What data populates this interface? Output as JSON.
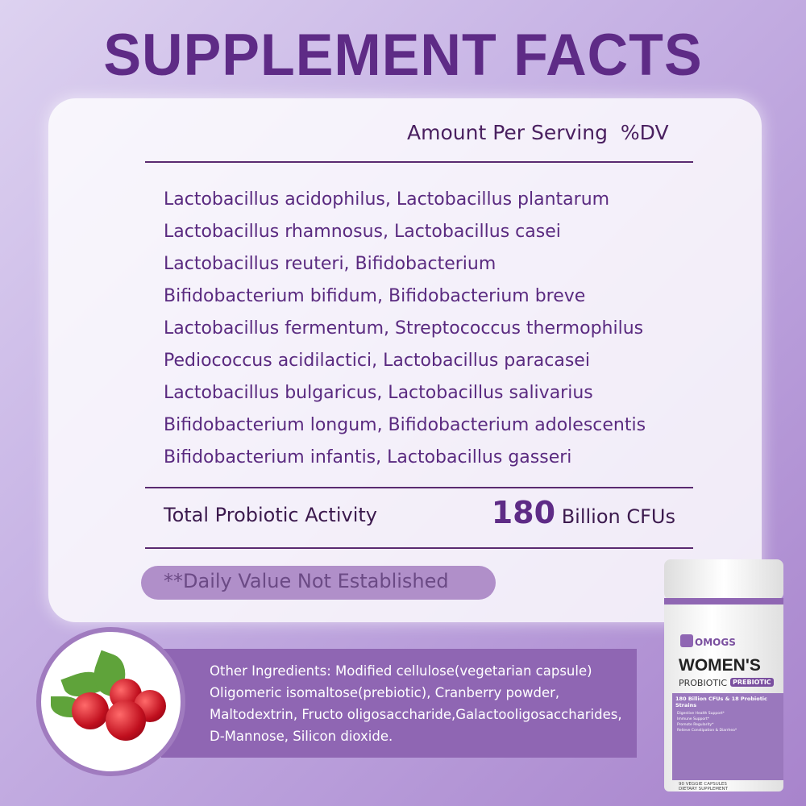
{
  "title": "SUPPLEMENT FACTS",
  "header": {
    "amount": "Amount Per Serving",
    "dv": "%DV"
  },
  "ingredients": [
    "Lactobacillus acidophilus, Lactobacillus plantarum",
    "Lactobacillus rhamnosus, Lactobacillus casei",
    "Lactobacillus reuteri, Bifidobacterium",
    "Bifidobacterium bifidum, Bifidobacterium breve",
    "Lactobacillus fermentum, Streptococcus thermophilus",
    "Pediococcus acidilactici, Lactobacillus paracasei",
    "Lactobacillus bulgaricus, Lactobacillus salivarius",
    "Bifidobacterium longum, Bifidobacterium adolescentis",
    "Bifidobacterium infantis, Lactobacillus gasseri"
  ],
  "total": {
    "label": "Total Probiotic Activity",
    "value": "180",
    "unit": "Billion CFUs"
  },
  "daily_value_note": "**Daily Value Not Established",
  "other_ingredients": [
    "Other Ingredients: Modified cellulose(vegetarian capsule)",
    "Oligomeric isomaltose(prebiotic), Cranberry powder,",
    "Maltodextrin, Fructo oligosaccharide,Galactooligosaccharides,",
    "D-Mannose, Silicon dioxide."
  ],
  "bottle": {
    "brand": "OMOGS",
    "name": "WOMEN'S",
    "type": "PROBIOTIC",
    "badge": "PREBIOTIC",
    "headline": "180 Billion CFUs & 18 Probiotic Strains",
    "features": [
      "Digestive Health Support*",
      "Immune Support*",
      "Promote Regularity*",
      "Relieve Constipation & Diarrhea*"
    ],
    "count": "90 VEGGIE CAPSULES",
    "footer": "DIETARY SUPPLEMENT"
  },
  "colors": {
    "accent": "#5e2b86",
    "band": "#8f66b3"
  }
}
